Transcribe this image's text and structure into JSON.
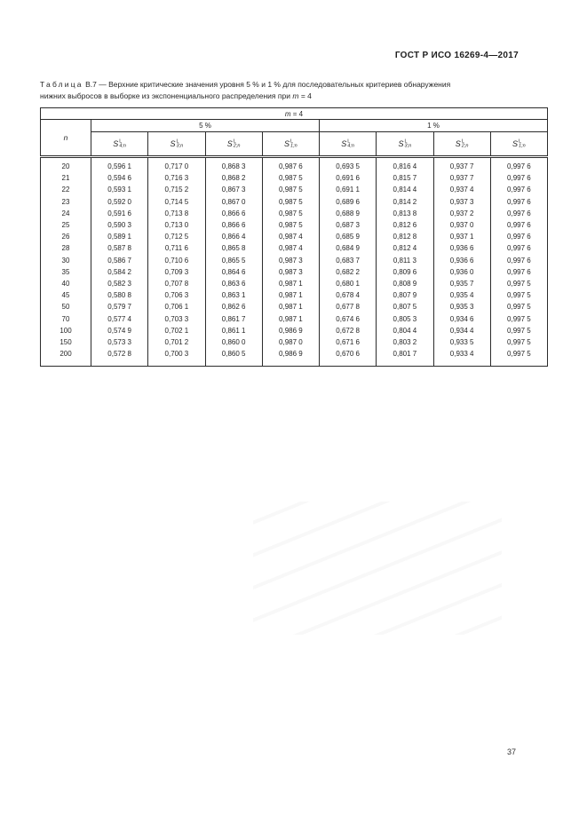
{
  "page": {
    "doc_header": "ГОСТ Р ИСО 16269-4—2017",
    "page_number": "37"
  },
  "caption": {
    "label_word": "Таблица",
    "label_number": "В.7",
    "line1_rest": "— Верхние критические значения уровня 5 % и 1 % для последовательных критериев обнаружения",
    "line2": "нижних выбросов в выборке из экспоненциального распределения при",
    "var": "m",
    "value": "= 4"
  },
  "table": {
    "m_header": {
      "var": "m",
      "value": "= 4"
    },
    "n_label": "n",
    "groups": [
      {
        "label": "5 %"
      },
      {
        "label": "1 %"
      }
    ],
    "stat_base": "S",
    "stat_sup": "L",
    "stat_subs": [
      "4;n",
      "3;n",
      "2;n",
      "1;n"
    ],
    "rows": [
      {
        "n": "20",
        "values": [
          "0,596 1",
          "0,717 0",
          "0,868 3",
          "0,987 6",
          "0,693 5",
          "0,816 4",
          "0,937 7",
          "0,997 6"
        ]
      },
      {
        "n": "21",
        "values": [
          "0,594 6",
          "0,716 3",
          "0,868 2",
          "0,987 5",
          "0,691 6",
          "0,815 7",
          "0,937 7",
          "0,997 6"
        ]
      },
      {
        "n": "22",
        "values": [
          "0,593 1",
          "0,715 2",
          "0,867 3",
          "0,987 5",
          "0,691 1",
          "0,814 4",
          "0,937 4",
          "0,997 6"
        ]
      },
      {
        "n": "23",
        "values": [
          "0,592 0",
          "0,714 5",
          "0,867 0",
          "0,987 5",
          "0,689 6",
          "0,814 2",
          "0,937 3",
          "0,997 6"
        ]
      },
      {
        "n": "24",
        "values": [
          "0,591 6",
          "0,713 8",
          "0,866 6",
          "0,987 5",
          "0,688 9",
          "0,813 8",
          "0,937 2",
          "0,997 6"
        ]
      },
      {
        "n": "25",
        "values": [
          "0,590 3",
          "0,713 0",
          "0,866 6",
          "0,987 5",
          "0,687 3",
          "0,812 6",
          "0,937 0",
          "0,997 6"
        ]
      },
      {
        "n": "26",
        "values": [
          "0,589 1",
          "0,712 5",
          "0,866 4",
          "0,987 4",
          "0,685 9",
          "0,812 8",
          "0,937 1",
          "0,997 6"
        ]
      },
      {
        "n": "28",
        "values": [
          "0,587 8",
          "0,711 6",
          "0,865 8",
          "0,987 4",
          "0,684 9",
          "0,812 4",
          "0,936 6",
          "0,997 6"
        ]
      },
      {
        "n": "30",
        "values": [
          "0,586 7",
          "0,710 6",
          "0,865 5",
          "0,987 3",
          "0,683 7",
          "0,811 3",
          "0,936 6",
          "0,997 6"
        ]
      },
      {
        "n": "35",
        "values": [
          "0,584 2",
          "0,709 3",
          "0,864 6",
          "0,987 3",
          "0,682 2",
          "0,809 6",
          "0,936 0",
          "0,997 6"
        ]
      },
      {
        "n": "40",
        "values": [
          "0,582 3",
          "0,707 8",
          "0,863 6",
          "0,987 1",
          "0,680 1",
          "0,808 9",
          "0,935 7",
          "0,997 5"
        ]
      },
      {
        "n": "45",
        "values": [
          "0,580 8",
          "0,706 3",
          "0,863 1",
          "0,987 1",
          "0,678 4",
          "0,807 9",
          "0,935 4",
          "0,997 5"
        ]
      },
      {
        "n": "50",
        "values": [
          "0,579 7",
          "0,706 1",
          "0,862 6",
          "0,987 1",
          "0,677 8",
          "0,807 5",
          "0,935 3",
          "0,997 5"
        ]
      },
      {
        "n": "70",
        "values": [
          "0,577 4",
          "0,703 3",
          "0,861 7",
          "0,987 1",
          "0,674 6",
          "0,805 3",
          "0,934 6",
          "0,997 5"
        ]
      },
      {
        "n": "100",
        "values": [
          "0,574 9",
          "0,702 1",
          "0,861 1",
          "0,986 9",
          "0,672 8",
          "0,804 4",
          "0,934 4",
          "0,997 5"
        ]
      },
      {
        "n": "150",
        "values": [
          "0,573 3",
          "0,701 2",
          "0,860 0",
          "0,987 0",
          "0,671 6",
          "0,803 2",
          "0,933 5",
          "0,997 5"
        ]
      },
      {
        "n": "200",
        "values": [
          "0,572 8",
          "0,700 3",
          "0,860 5",
          "0,986 9",
          "0,670 6",
          "0,801 7",
          "0,933 4",
          "0,997 5"
        ]
      }
    ]
  }
}
